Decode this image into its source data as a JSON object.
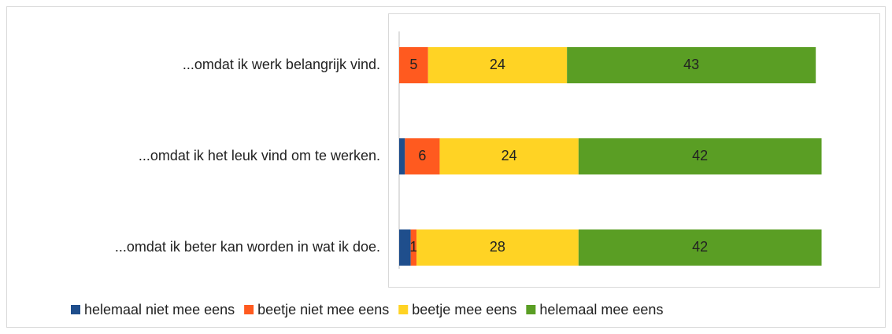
{
  "chart_data": {
    "type": "stacked_bar_horizontal",
    "categories": [
      "...omdat ik werk belangrijk vind.",
      "...omdat ik het leuk vind om te werken.",
      "...omdat ik beter kan worden in wat ik doe."
    ],
    "series": [
      {
        "name": "helemaal niet mee eens",
        "color": "#1f4e8c",
        "values": [
          0,
          1,
          2
        ],
        "show_labels": false
      },
      {
        "name": "beetje niet mee eens",
        "color": "#ff5a1f",
        "values": [
          5,
          6,
          1
        ],
        "show_labels": true
      },
      {
        "name": "beetje mee eens",
        "color": "#ffd324",
        "values": [
          24,
          24,
          28
        ],
        "show_labels": true
      },
      {
        "name": "helemaal mee eens",
        "color": "#5a9e24",
        "values": [
          43,
          42,
          42
        ],
        "show_labels": true
      }
    ],
    "xlim": [
      0,
      80
    ],
    "legend": "bottom"
  }
}
